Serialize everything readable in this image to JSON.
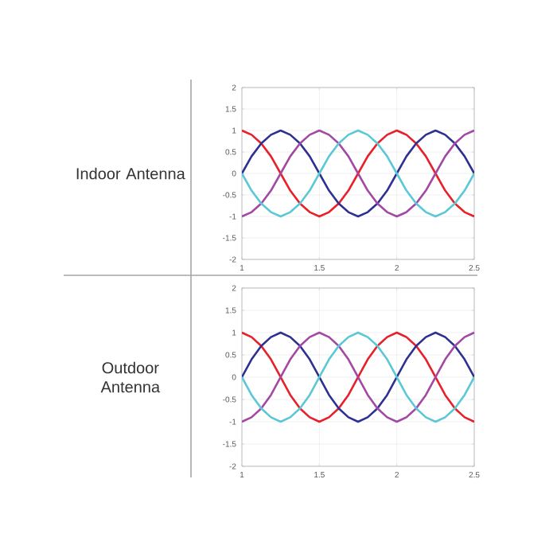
{
  "chart_data": [
    {
      "type": "line",
      "ylabel": "Indoor Antenna",
      "x": [
        1,
        1.0625,
        1.125,
        1.1875,
        1.25,
        1.3125,
        1.375,
        1.4375,
        1.5,
        1.5625,
        1.625,
        1.6875,
        1.75,
        1.8125,
        1.875,
        1.9375,
        2,
        2.0625,
        2.125,
        2.1875,
        2.25,
        2.3125,
        2.375,
        2.4375,
        2.5
      ],
      "xlim": [
        1,
        2.5
      ],
      "xticks": [
        1,
        1.5,
        2,
        2.5
      ],
      "ylim": [
        -2,
        2
      ],
      "yticks": [
        -2,
        -1.5,
        -1,
        -0.5,
        0,
        0.5,
        1,
        1.5,
        2
      ],
      "grid": true,
      "series": [
        {
          "color": "#e8202a",
          "values": [
            1,
            0.9,
            0.7,
            0.4,
            0,
            -0.4,
            -0.7,
            -0.9,
            -1,
            -0.9,
            -0.7,
            -0.4,
            0,
            0.4,
            0.7,
            0.9,
            1,
            0.9,
            0.7,
            0.4,
            0,
            -0.4,
            -0.7,
            -0.9,
            -1
          ]
        },
        {
          "color": "#2e3192",
          "values": [
            0,
            0.4,
            0.7,
            0.9,
            1,
            0.9,
            0.7,
            0.4,
            0,
            -0.4,
            -0.7,
            -0.9,
            -1,
            -0.9,
            -0.7,
            -0.4,
            0,
            0.4,
            0.7,
            0.9,
            1,
            0.9,
            0.7,
            0.4,
            0
          ]
        },
        {
          "color": "#a349a4",
          "values": [
            -1,
            -0.9,
            -0.7,
            -0.4,
            0,
            0.4,
            0.7,
            0.9,
            1,
            0.9,
            0.7,
            0.4,
            0,
            -0.4,
            -0.7,
            -0.9,
            -1,
            -0.9,
            -0.7,
            -0.4,
            0,
            0.4,
            0.7,
            0.9,
            1
          ]
        },
        {
          "color": "#5bc8d5",
          "values": [
            0,
            -0.4,
            -0.7,
            -0.9,
            -1,
            -0.9,
            -0.7,
            -0.4,
            0,
            0.4,
            0.7,
            0.9,
            1,
            0.9,
            0.7,
            0.4,
            0,
            -0.4,
            -0.7,
            -0.9,
            -1,
            -0.9,
            -0.7,
            -0.4,
            0
          ]
        }
      ]
    },
    {
      "type": "line",
      "ylabel": "Outdoor Antenna",
      "x": [
        1,
        1.0625,
        1.125,
        1.1875,
        1.25,
        1.3125,
        1.375,
        1.4375,
        1.5,
        1.5625,
        1.625,
        1.6875,
        1.75,
        1.8125,
        1.875,
        1.9375,
        2,
        2.0625,
        2.125,
        2.1875,
        2.25,
        2.3125,
        2.375,
        2.4375,
        2.5
      ],
      "xlim": [
        1,
        2.5
      ],
      "xticks": [
        1,
        1.5,
        2,
        2.5
      ],
      "ylim": [
        -2,
        2
      ],
      "yticks": [
        -2,
        -1.5,
        -1,
        -0.5,
        0,
        0.5,
        1,
        1.5,
        2
      ],
      "grid": true,
      "series": [
        {
          "color": "#e8202a",
          "values": [
            1,
            0.9,
            0.7,
            0.4,
            0,
            -0.4,
            -0.7,
            -0.9,
            -1,
            -0.9,
            -0.7,
            -0.4,
            0,
            0.4,
            0.7,
            0.9,
            1,
            0.9,
            0.7,
            0.4,
            0,
            -0.4,
            -0.7,
            -0.9,
            -1
          ]
        },
        {
          "color": "#2e3192",
          "values": [
            0,
            0.4,
            0.7,
            0.9,
            1,
            0.9,
            0.7,
            0.4,
            0,
            -0.4,
            -0.7,
            -0.9,
            -1,
            -0.9,
            -0.7,
            -0.4,
            0,
            0.4,
            0.7,
            0.9,
            1,
            0.9,
            0.7,
            0.4,
            0
          ]
        },
        {
          "color": "#a349a4",
          "values": [
            -1,
            -0.9,
            -0.7,
            -0.4,
            0,
            0.4,
            0.7,
            0.9,
            1,
            0.9,
            0.7,
            0.4,
            0,
            -0.4,
            -0.7,
            -0.9,
            -1,
            -0.9,
            -0.7,
            -0.4,
            0,
            0.4,
            0.7,
            0.9,
            1
          ]
        },
        {
          "color": "#5bc8d5",
          "values": [
            0,
            -0.4,
            -0.7,
            -0.9,
            -1,
            -0.9,
            -0.7,
            -0.4,
            0,
            0.4,
            0.7,
            0.9,
            1,
            0.9,
            0.7,
            0.4,
            0,
            -0.4,
            -0.7,
            -0.9,
            -1,
            -0.9,
            -0.7,
            -0.4,
            0
          ]
        }
      ]
    }
  ]
}
